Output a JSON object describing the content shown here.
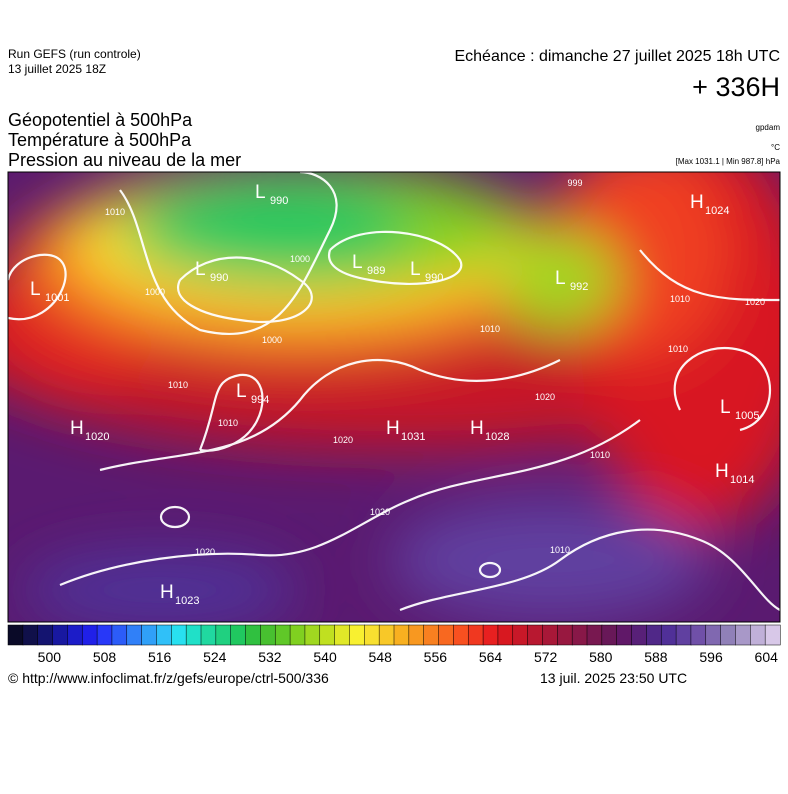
{
  "header": {
    "run": "Run GEFS (run controle)",
    "run_date": "13 juillet 2025 18Z",
    "echeance": "Echéance : dimanche 27 juillet 2025 18h UTC",
    "lead": "+ 336H",
    "title_lines": [
      "Géopotentiel à 500hPa",
      "Température à 500hPa",
      "Pression au niveau de la mer"
    ],
    "unit_geo": "gpdam",
    "unit_temp": "°C",
    "unit_press": "[Max 1031.1 | Min 987.8] hPa"
  },
  "map": {
    "centers": [
      {
        "type": "L",
        "value": "1001"
      },
      {
        "type": "L",
        "value": "990"
      },
      {
        "type": "L",
        "value": "990"
      },
      {
        "type": "L",
        "value": "989"
      },
      {
        "type": "L",
        "value": "990"
      },
      {
        "type": "L",
        "value": "994"
      },
      {
        "type": "H",
        "value": "1024"
      },
      {
        "type": "H",
        "value": "1020"
      },
      {
        "type": "H",
        "value": "1031"
      },
      {
        "type": "H",
        "value": "1028"
      },
      {
        "type": "L",
        "value": "1005"
      },
      {
        "type": "H",
        "value": "1014"
      },
      {
        "type": "H",
        "value": "1023"
      },
      {
        "type": "L",
        "value": "992"
      }
    ],
    "isobar_labels": [
      "1010",
      "1000",
      "1010",
      "1000",
      "1000",
      "1010",
      "1020",
      "1020",
      "1020",
      "1010",
      "1010",
      "1010",
      "1010",
      "1020",
      "1010",
      "1020",
      "999"
    ]
  },
  "colorbar": {
    "range": [
      494,
      606
    ],
    "ticks": [
      500,
      508,
      516,
      524,
      532,
      540,
      548,
      556,
      564,
      572,
      580,
      588,
      596,
      604
    ],
    "colors": [
      "#0a0a28",
      "#10104a",
      "#141470",
      "#1818a0",
      "#1c1cc8",
      "#2020e8",
      "#2838f8",
      "#2c5cf8",
      "#3080f8",
      "#30a0f8",
      "#30c0f8",
      "#28e0f0",
      "#20e0c8",
      "#20d8a0",
      "#20d080",
      "#20c860",
      "#30c040",
      "#48c030",
      "#60c828",
      "#80d020",
      "#a0d820",
      "#c0e020",
      "#e0e828",
      "#f8f030",
      "#f8e030",
      "#f8c828",
      "#f8b020",
      "#f89820",
      "#f88020",
      "#f86820",
      "#f85020",
      "#f03820",
      "#e82020",
      "#d81820",
      "#c81828",
      "#b81830",
      "#a81838",
      "#981840",
      "#881848",
      "#781850",
      "#681858",
      "#601868",
      "#582078",
      "#502888",
      "#503098",
      "#6040a0",
      "#7050a8",
      "#8068b0",
      "#9080b8",
      "#a898c8",
      "#c0b0d8",
      "#d8c8e8"
    ]
  },
  "footer": {
    "url": "© http://www.infoclimat.fr/z/gefs/europe/ctrl-500/336",
    "generated": "13 juil. 2025 23:50 UTC"
  }
}
